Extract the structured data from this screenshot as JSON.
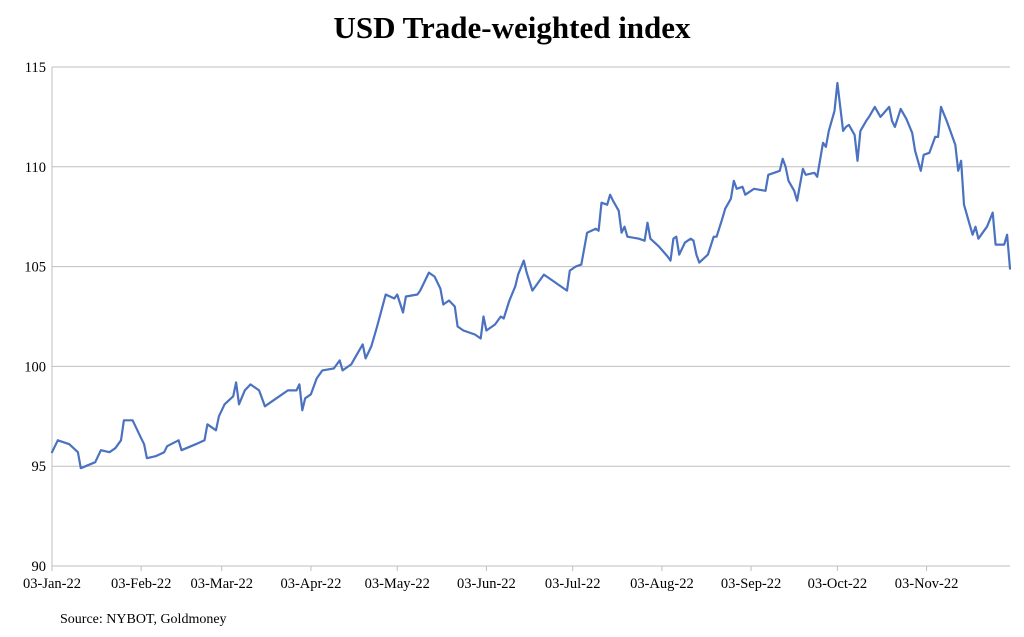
{
  "chart_data": {
    "type": "line",
    "title": "USD Trade-weighted index",
    "source": "Source: NYBOT, Goldmoney",
    "xlabel": "",
    "ylabel": "",
    "x_unit": "days since 03-Jan-22",
    "xlim": [
      0,
      333
    ],
    "ylim": [
      90,
      115
    ],
    "grid": "horizontal",
    "line_color": "#4A72C0",
    "yticks": [
      90,
      95,
      100,
      105,
      110,
      115
    ],
    "xticks": [
      {
        "day": 0,
        "label": "03-Jan-22"
      },
      {
        "day": 31,
        "label": "03-Feb-22"
      },
      {
        "day": 59,
        "label": "03-Mar-22"
      },
      {
        "day": 90,
        "label": "03-Apr-22"
      },
      {
        "day": 120,
        "label": "03-May-22"
      },
      {
        "day": 151,
        "label": "03-Jun-22"
      },
      {
        "day": 181,
        "label": "03-Jul-22"
      },
      {
        "day": 212,
        "label": "03-Aug-22"
      },
      {
        "day": 243,
        "label": "03-Sep-22"
      },
      {
        "day": 273,
        "label": "03-Oct-22"
      },
      {
        "day": 304,
        "label": "03-Nov-22"
      }
    ],
    "series": [
      {
        "name": "USD Trade-weighted index",
        "points": [
          [
            0,
            95.7
          ],
          [
            2,
            96.3
          ],
          [
            6,
            96.1
          ],
          [
            9,
            95.7
          ],
          [
            10,
            94.9
          ],
          [
            15,
            95.2
          ],
          [
            17,
            95.8
          ],
          [
            20,
            95.7
          ],
          [
            22,
            95.9
          ],
          [
            24,
            96.3
          ],
          [
            25,
            97.3
          ],
          [
            28,
            97.3
          ],
          [
            31,
            96.4
          ],
          [
            32,
            96.1
          ],
          [
            33,
            95.4
          ],
          [
            36,
            95.5
          ],
          [
            39,
            95.7
          ],
          [
            40,
            96.0
          ],
          [
            44,
            96.3
          ],
          [
            45,
            95.8
          ],
          [
            50,
            96.1
          ],
          [
            53,
            96.3
          ],
          [
            54,
            97.1
          ],
          [
            57,
            96.8
          ],
          [
            58,
            97.5
          ],
          [
            60,
            98.1
          ],
          [
            63,
            98.5
          ],
          [
            64,
            99.2
          ],
          [
            65,
            98.1
          ],
          [
            67,
            98.8
          ],
          [
            69,
            99.1
          ],
          [
            72,
            98.8
          ],
          [
            74,
            98.0
          ],
          [
            76,
            98.2
          ],
          [
            79,
            98.5
          ],
          [
            82,
            98.8
          ],
          [
            85,
            98.8
          ],
          [
            86,
            99.1
          ],
          [
            87,
            97.8
          ],
          [
            88,
            98.4
          ],
          [
            90,
            98.6
          ],
          [
            92,
            99.4
          ],
          [
            94,
            99.8
          ],
          [
            98,
            99.9
          ],
          [
            100,
            100.3
          ],
          [
            101,
            99.8
          ],
          [
            104,
            100.1
          ],
          [
            106,
            100.6
          ],
          [
            108,
            101.1
          ],
          [
            109,
            100.4
          ],
          [
            111,
            101.0
          ],
          [
            113,
            102.0
          ],
          [
            116,
            103.6
          ],
          [
            119,
            103.4
          ],
          [
            120,
            103.6
          ],
          [
            122,
            102.7
          ],
          [
            123,
            103.5
          ],
          [
            127,
            103.6
          ],
          [
            128,
            103.8
          ],
          [
            131,
            104.7
          ],
          [
            133,
            104.5
          ],
          [
            135,
            103.9
          ],
          [
            136,
            103.1
          ],
          [
            138,
            103.3
          ],
          [
            140,
            103.0
          ],
          [
            141,
            102.0
          ],
          [
            143,
            101.8
          ],
          [
            147,
            101.6
          ],
          [
            149,
            101.4
          ],
          [
            150,
            102.5
          ],
          [
            151,
            101.8
          ],
          [
            154,
            102.1
          ],
          [
            156,
            102.5
          ],
          [
            157,
            102.4
          ],
          [
            159,
            103.3
          ],
          [
            161,
            104.0
          ],
          [
            162,
            104.6
          ],
          [
            164,
            105.3
          ],
          [
            165,
            104.7
          ],
          [
            167,
            103.8
          ],
          [
            169,
            104.2
          ],
          [
            171,
            104.6
          ],
          [
            174,
            104.3
          ],
          [
            176,
            104.1
          ],
          [
            179,
            103.8
          ],
          [
            180,
            104.8
          ],
          [
            182,
            105.0
          ],
          [
            184,
            105.1
          ],
          [
            186,
            106.7
          ],
          [
            189,
            106.9
          ],
          [
            190,
            106.8
          ],
          [
            191,
            108.2
          ],
          [
            193,
            108.1
          ],
          [
            194,
            108.6
          ],
          [
            195,
            108.3
          ],
          [
            197,
            107.8
          ],
          [
            198,
            106.7
          ],
          [
            199,
            107.0
          ],
          [
            200,
            106.5
          ],
          [
            204,
            106.4
          ],
          [
            206,
            106.3
          ],
          [
            207,
            107.2
          ],
          [
            208,
            106.4
          ],
          [
            211,
            106.0
          ],
          [
            214,
            105.5
          ],
          [
            215,
            105.3
          ],
          [
            216,
            106.4
          ],
          [
            217,
            106.5
          ],
          [
            218,
            105.6
          ],
          [
            220,
            106.2
          ],
          [
            222,
            106.4
          ],
          [
            223,
            106.3
          ],
          [
            224,
            105.6
          ],
          [
            225,
            105.2
          ],
          [
            228,
            105.6
          ],
          [
            230,
            106.5
          ],
          [
            231,
            106.5
          ],
          [
            233,
            107.4
          ],
          [
            234,
            107.9
          ],
          [
            236,
            108.4
          ],
          [
            237,
            109.3
          ],
          [
            238,
            108.9
          ],
          [
            240,
            109.0
          ],
          [
            241,
            108.6
          ],
          [
            242,
            108.7
          ],
          [
            244,
            108.9
          ],
          [
            248,
            108.8
          ],
          [
            249,
            109.6
          ],
          [
            251,
            109.7
          ],
          [
            253,
            109.8
          ],
          [
            254,
            110.4
          ],
          [
            255,
            110.0
          ],
          [
            256,
            109.3
          ],
          [
            258,
            108.8
          ],
          [
            259,
            108.3
          ],
          [
            261,
            109.9
          ],
          [
            262,
            109.6
          ],
          [
            265,
            109.7
          ],
          [
            266,
            109.5
          ],
          [
            268,
            111.2
          ],
          [
            269,
            111.0
          ],
          [
            270,
            111.8
          ],
          [
            272,
            112.8
          ],
          [
            273,
            114.2
          ],
          [
            275,
            111.8
          ],
          [
            276,
            112.0
          ],
          [
            277,
            112.1
          ],
          [
            279,
            111.6
          ],
          [
            280,
            110.3
          ],
          [
            281,
            111.8
          ],
          [
            283,
            112.3
          ],
          [
            284,
            112.5
          ],
          [
            286,
            113.0
          ],
          [
            288,
            112.5
          ],
          [
            291,
            113.0
          ],
          [
            292,
            112.3
          ],
          [
            293,
            112.0
          ],
          [
            295,
            112.9
          ],
          [
            297,
            112.4
          ],
          [
            299,
            111.7
          ],
          [
            300,
            110.8
          ],
          [
            302,
            109.8
          ],
          [
            303,
            110.6
          ],
          [
            305,
            110.7
          ],
          [
            307,
            111.5
          ],
          [
            308,
            111.5
          ],
          [
            309,
            113.0
          ],
          [
            311,
            112.3
          ],
          [
            314,
            111.1
          ],
          [
            315,
            109.8
          ],
          [
            316,
            110.3
          ],
          [
            317,
            108.1
          ],
          [
            319,
            107.1
          ],
          [
            320,
            106.6
          ],
          [
            321,
            107.0
          ],
          [
            322,
            106.4
          ],
          [
            324,
            106.8
          ],
          [
            325,
            107.0
          ],
          [
            327,
            107.7
          ],
          [
            328,
            106.1
          ],
          [
            331,
            106.1
          ],
          [
            332,
            106.6
          ],
          [
            333,
            104.9
          ]
        ]
      }
    ]
  }
}
